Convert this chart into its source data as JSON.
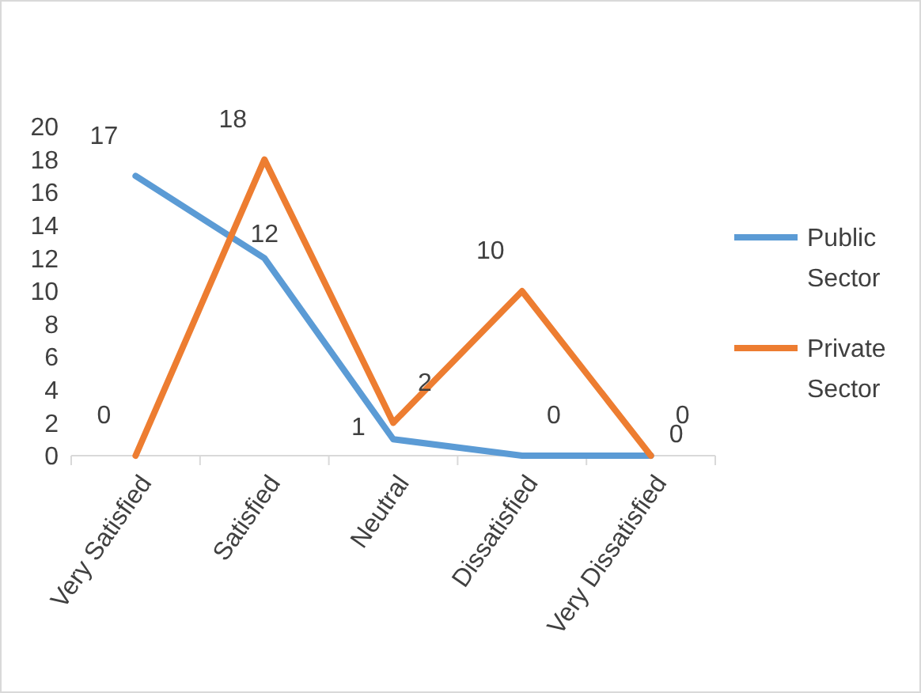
{
  "chart_data": {
    "type": "line",
    "categories": [
      "Very Satisfied",
      "Satisfied",
      "Neutral",
      "Dissatisfied",
      "Very Dissatisfied"
    ],
    "series": [
      {
        "name": "Public Sector",
        "color": "#5b9bd5",
        "values": [
          17,
          12,
          1,
          0,
          0
        ]
      },
      {
        "name": "Private Sector",
        "color": "#ed7d31",
        "values": [
          0,
          18,
          2,
          10,
          0
        ]
      }
    ],
    "ylim": [
      0,
      20
    ],
    "yticks": [
      0,
      2,
      4,
      6,
      8,
      10,
      12,
      14,
      16,
      18,
      20
    ],
    "grid": false,
    "legend": "right",
    "data_labels": true,
    "marker": "none",
    "line_style": "solid"
  }
}
